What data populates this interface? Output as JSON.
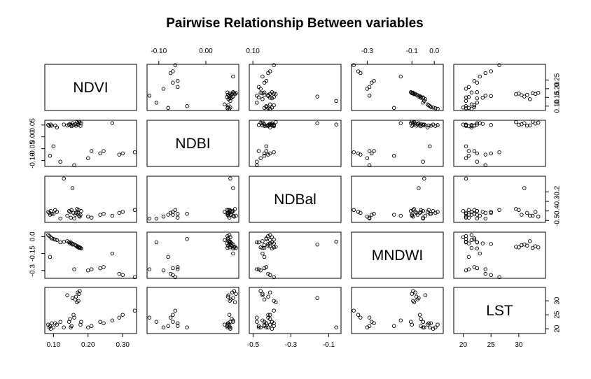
{
  "chart_data": {
    "type": "scatter",
    "title": "Pairwise Relationship Between variables",
    "variables": [
      "NDVI",
      "NDBI",
      "NDBal",
      "MNDWI",
      "LST"
    ],
    "ranges": {
      "NDVI": [
        0.075,
        0.34
      ],
      "NDBI": [
        -0.125,
        0.07
      ],
      "NDBal": [
        -0.52,
        -0.035
      ],
      "MNDWI": [
        -0.37,
        0.04
      ],
      "LST": [
        18.3,
        34.8
      ]
    },
    "ticks": {
      "NDVI": {
        "values": [
          0.1,
          0.2,
          0.3
        ],
        "labels": [
          "0.10",
          "0.20",
          "0.30"
        ]
      },
      "NDVI_right": {
        "values": [
          0.1,
          0.15,
          0.2,
          0.25
        ],
        "labels": [
          "0.10",
          "0.15",
          "0.20",
          "0.25"
        ]
      },
      "NDBI": {
        "values": [
          -0.1,
          0.0,
          0.1
        ],
        "labels": [
          "-0.10",
          "0.00",
          "0.10"
        ]
      },
      "NDBI_left": {
        "values": [
          -0.1,
          -0.05,
          0.0,
          0.05
        ],
        "labels": [
          "-0.10",
          "-0.05",
          "0.00",
          "0.05"
        ]
      },
      "NDBal": {
        "values": [
          -0.5,
          -0.3,
          -0.1
        ],
        "labels": [
          "-0.5",
          "-0.3",
          "-0.1"
        ]
      },
      "NDBal_right": {
        "values": [
          -0.5,
          -0.4,
          -0.3,
          -0.2
        ],
        "labels": [
          "-0.5",
          "-0.4",
          "-0.3",
          "-0.2"
        ]
      },
      "MNDWI": {
        "values": [
          -0.3,
          -0.1,
          0.0
        ],
        "labels": [
          "-0.3",
          "-0.1",
          "0.0"
        ]
      },
      "MNDWI_left": {
        "values": [
          -0.3,
          -0.15,
          0.0
        ],
        "labels": [
          "-0.3",
          "-0.15",
          "0.0"
        ]
      },
      "LST": {
        "values": [
          20,
          25,
          30
        ],
        "labels": [
          "20",
          "25",
          "30"
        ]
      },
      "LST_right": {
        "values": [
          20,
          25,
          30
        ],
        "labels": [
          "20",
          "25",
          "30"
        ]
      }
    },
    "observations": [
      {
        "NDVI": 0.085,
        "NDBI": 0.05,
        "NDBal": -0.41,
        "MNDWI": 0.015,
        "LST": 21.5
      },
      {
        "NDVI": 0.088,
        "NDBI": 0.046,
        "NDBal": -0.42,
        "MNDWI": 0.005,
        "LST": 20.5
      },
      {
        "NDVI": 0.092,
        "NDBI": 0.052,
        "NDBal": -0.4,
        "MNDWI": -0.005,
        "LST": 20.0
      },
      {
        "NDVI": 0.095,
        "NDBI": 0.047,
        "NDBal": -0.43,
        "MNDWI": -0.015,
        "LST": 22.0
      },
      {
        "NDVI": 0.09,
        "NDBI": -0.08,
        "NDBal": -0.44,
        "MNDWI": -0.18,
        "LST": 21.0
      },
      {
        "NDVI": 0.1,
        "NDBI": -0.04,
        "NDBal": -0.43,
        "MNDWI": -0.02,
        "LST": 20.5
      },
      {
        "NDVI": 0.105,
        "NDBI": 0.048,
        "NDBal": -0.39,
        "MNDWI": -0.025,
        "LST": 22.0
      },
      {
        "NDVI": 0.11,
        "NDBI": 0.04,
        "NDBal": -0.41,
        "MNDWI": -0.03,
        "LST": 21.5
      },
      {
        "NDVI": 0.14,
        "NDBI": 0.048,
        "NDBal": -0.45,
        "MNDWI": -0.04,
        "LST": 32.0
      },
      {
        "NDVI": 0.145,
        "NDBI": 0.052,
        "NDBal": -0.4,
        "MNDWI": -0.05,
        "LST": 22.5
      },
      {
        "NDVI": 0.148,
        "NDBI": 0.055,
        "NDBal": -0.41,
        "MNDWI": -0.06,
        "LST": 23.5
      },
      {
        "NDVI": 0.15,
        "NDBI": 0.05,
        "NDBal": -0.47,
        "MNDWI": -0.05,
        "LST": 20.5
      },
      {
        "NDVI": 0.152,
        "NDBI": 0.045,
        "NDBal": -0.39,
        "MNDWI": -0.06,
        "LST": 21.0
      },
      {
        "NDVI": 0.155,
        "NDBI": 0.058,
        "NDBal": -0.16,
        "MNDWI": -0.07,
        "LST": 31.0
      },
      {
        "NDVI": 0.158,
        "NDBI": 0.05,
        "NDBal": -0.42,
        "MNDWI": -0.065,
        "LST": 25.0
      },
      {
        "NDVI": 0.16,
        "NDBI": -0.12,
        "NDBal": -0.48,
        "MNDWI": -0.29,
        "LST": 24.0
      },
      {
        "NDVI": 0.163,
        "NDBI": 0.053,
        "NDBal": -0.44,
        "MNDWI": -0.075,
        "LST": 30.5
      },
      {
        "NDVI": 0.165,
        "NDBI": 0.047,
        "NDBal": -0.42,
        "MNDWI": -0.08,
        "LST": 31.5
      },
      {
        "NDVI": 0.168,
        "NDBI": 0.062,
        "NDBal": -0.38,
        "MNDWI": -0.09,
        "LST": 29.5
      },
      {
        "NDVI": 0.17,
        "NDBI": 0.056,
        "NDBal": -0.41,
        "MNDWI": -0.085,
        "LST": 33.0
      },
      {
        "NDVI": 0.172,
        "NDBI": 0.051,
        "NDBal": -0.39,
        "MNDWI": -0.095,
        "LST": 30.0
      },
      {
        "NDVI": 0.174,
        "NDBI": 0.064,
        "NDBal": -0.45,
        "MNDWI": -0.1,
        "LST": 32.5
      },
      {
        "NDVI": 0.176,
        "NDBI": 0.06,
        "NDBal": -0.46,
        "MNDWI": -0.095,
        "LST": 33.5
      },
      {
        "NDVI": 0.178,
        "NDBI": 0.046,
        "NDBal": -0.44,
        "MNDWI": -0.1,
        "LST": 21.5
      },
      {
        "NDVI": 0.18,
        "NDBI": 0.058,
        "NDBal": -0.4,
        "MNDWI": -0.105,
        "LST": 22.5
      },
      {
        "NDVI": 0.2,
        "NDBI": -0.09,
        "NDBal": -0.46,
        "MNDWI": -0.3,
        "LST": 20.5
      },
      {
        "NDVI": 0.21,
        "NDBI": -0.06,
        "NDBal": -0.47,
        "MNDWI": -0.29,
        "LST": 21.0
      },
      {
        "NDVI": 0.235,
        "NDBI": -0.07,
        "NDBal": -0.44,
        "MNDWI": -0.28,
        "LST": 22.5
      },
      {
        "NDVI": 0.245,
        "NDBI": -0.06,
        "NDBal": -0.43,
        "MNDWI": -0.27,
        "LST": 22.0
      },
      {
        "NDVI": 0.27,
        "NDBI": 0.058,
        "NDBal": -0.45,
        "MNDWI": -0.15,
        "LST": 23.0
      },
      {
        "NDVI": 0.29,
        "NDBI": -0.075,
        "NDBal": -0.42,
        "MNDWI": -0.33,
        "LST": 24.0
      },
      {
        "NDVI": 0.3,
        "NDBI": -0.07,
        "NDBal": -0.41,
        "MNDWI": -0.34,
        "LST": 25.0
      },
      {
        "NDVI": 0.335,
        "NDBI": -0.065,
        "NDBal": -0.39,
        "MNDWI": -0.36,
        "LST": 26.5
      },
      {
        "NDVI": 0.12,
        "NDBI": -0.105,
        "NDBal": -0.48,
        "MNDWI": -0.05,
        "LST": 22.5
      },
      {
        "NDVI": 0.13,
        "NDBI": 0.052,
        "NDBal": -0.06,
        "MNDWI": -0.045,
        "LST": 20.5
      }
    ]
  }
}
